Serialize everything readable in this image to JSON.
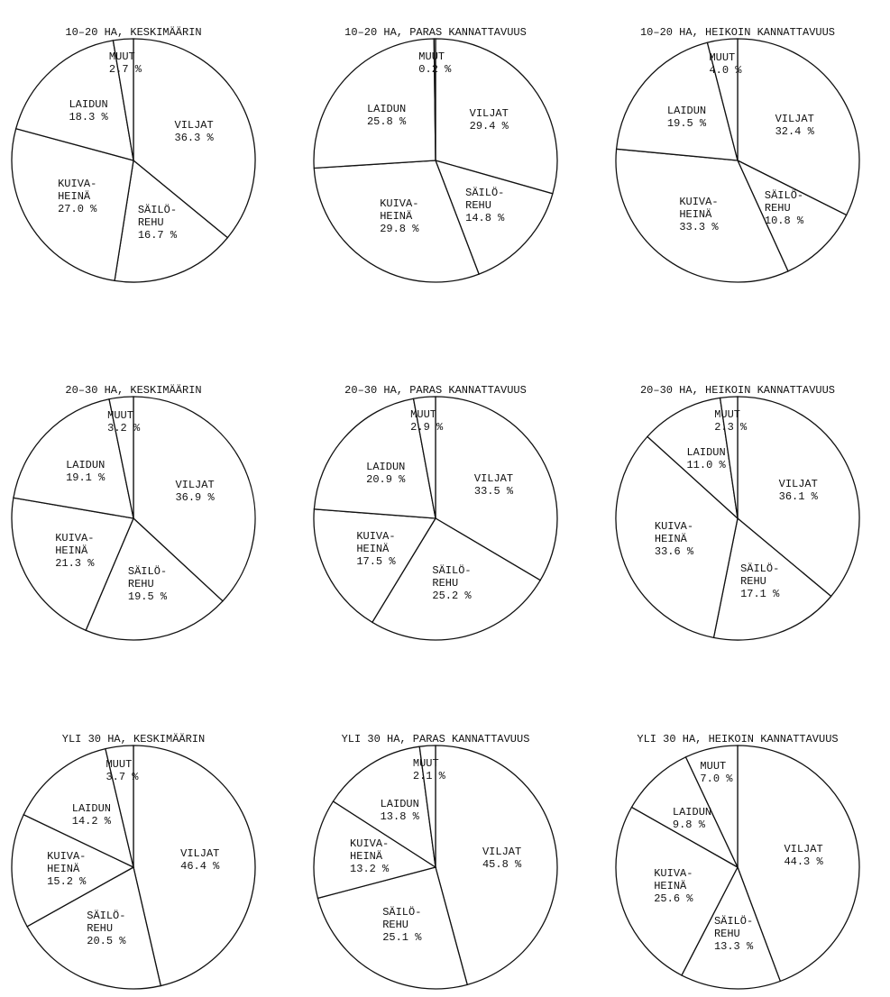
{
  "chart_data": [
    {
      "type": "pie",
      "title": "10–20 HA, KESKIMÄÄRIN",
      "categories": [
        "VILJAT",
        "SÄILÖ-\nREHU",
        "KUIVA-\nHEINÄ",
        "LAIDUN",
        "MUUT"
      ],
      "values": [
        36.3,
        16.7,
        27.0,
        18.3,
        2.7
      ],
      "value_labels": [
        "36.3 %",
        "16.7 %",
        "27.0 %",
        "18.3 %",
        "2.7 %"
      ]
    },
    {
      "type": "pie",
      "title": "10–20 HA, PARAS KANNATTAVUUS",
      "categories": [
        "VILJAT",
        "SÄILÖ-\nREHU",
        "KUIVA-\nHEINÄ",
        "LAIDUN",
        "MUUT"
      ],
      "values": [
        29.4,
        14.8,
        29.8,
        25.8,
        0.2
      ],
      "value_labels": [
        "29.4 %",
        "14.8 %",
        "29.8 %",
        "25.8 %",
        "0.2 %"
      ]
    },
    {
      "type": "pie",
      "title": "10–20 HA, HEIKOIN KANNATTAVUUS",
      "categories": [
        "VILJAT",
        "SÄILÖ-\nREHU",
        "KUIVA-\nHEINÄ",
        "LAIDUN",
        "MUUT"
      ],
      "values": [
        32.4,
        10.8,
        33.3,
        19.5,
        4.0
      ],
      "value_labels": [
        "32.4 %",
        "10.8 %",
        "33.3 %",
        "19.5 %",
        "4.0 %"
      ]
    },
    {
      "type": "pie",
      "title": "20–30 HA, KESKIMÄÄRIN",
      "categories": [
        "VILJAT",
        "SÄILÖ-\nREHU",
        "KUIVA-\nHEINÄ",
        "LAIDUN",
        "MUUT"
      ],
      "values": [
        36.9,
        19.5,
        21.3,
        19.1,
        3.2
      ],
      "value_labels": [
        "36.9 %",
        "19.5 %",
        "21.3 %",
        "19.1 %",
        "3.2 %"
      ]
    },
    {
      "type": "pie",
      "title": "20–30 HA, PARAS KANNATTAVUUS",
      "categories": [
        "VILJAT",
        "SÄILÖ-\nREHU",
        "KUIVA-\nHEINÄ",
        "LAIDUN",
        "MUUT"
      ],
      "values": [
        33.5,
        25.2,
        17.5,
        20.9,
        2.9
      ],
      "value_labels": [
        "33.5 %",
        "25.2 %",
        "17.5 %",
        "20.9 %",
        "2.9 %"
      ]
    },
    {
      "type": "pie",
      "title": "20–30 HA, HEIKOIN KANNATTAVUUS",
      "categories": [
        "VILJAT",
        "SÄILÖ-\nREHU",
        "KUIVA-\nHEINÄ",
        "LAIDUN",
        "MUUT"
      ],
      "values": [
        36.1,
        17.1,
        33.6,
        11.0,
        2.3
      ],
      "value_labels": [
        "36.1 %",
        "17.1 %",
        "33.6 %",
        "11.0 %",
        "2.3 %"
      ]
    },
    {
      "type": "pie",
      "title": "YLI 30 HA, KESKIMÄÄRIN",
      "categories": [
        "VILJAT",
        "SÄILÖ-\nREHU",
        "KUIVA-\nHEINÄ",
        "LAIDUN",
        "MUUT"
      ],
      "values": [
        46.4,
        20.5,
        15.2,
        14.2,
        3.7
      ],
      "value_labels": [
        "46.4 %",
        "20.5 %",
        "15.2 %",
        "14.2 %",
        "3.7 %"
      ]
    },
    {
      "type": "pie",
      "title": "YLI 30 HA, PARAS KANNATTAVUUS",
      "categories": [
        "VILJAT",
        "SÄILÖ-\nREHU",
        "KUIVA-\nHEINÄ",
        "LAIDUN",
        "MUUT"
      ],
      "values": [
        45.8,
        25.1,
        13.2,
        13.8,
        2.1
      ],
      "value_labels": [
        "45.8 %",
        "25.1 %",
        "13.2 %",
        "13.8 %",
        "2.1 %"
      ]
    },
    {
      "type": "pie",
      "title": "YLI 30 HA, HEIKOIN KANNATTAVUUS",
      "categories": [
        "VILJAT",
        "SÄILÖ-\nREHU",
        "KUIVA-\nHEINÄ",
        "LAIDUN",
        "MUUT"
      ],
      "values": [
        44.3,
        13.3,
        25.6,
        9.8,
        7.0
      ],
      "value_labels": [
        "44.3 %",
        "13.3 %",
        "25.6 %",
        "9.8 %",
        "7.0 %"
      ]
    }
  ]
}
